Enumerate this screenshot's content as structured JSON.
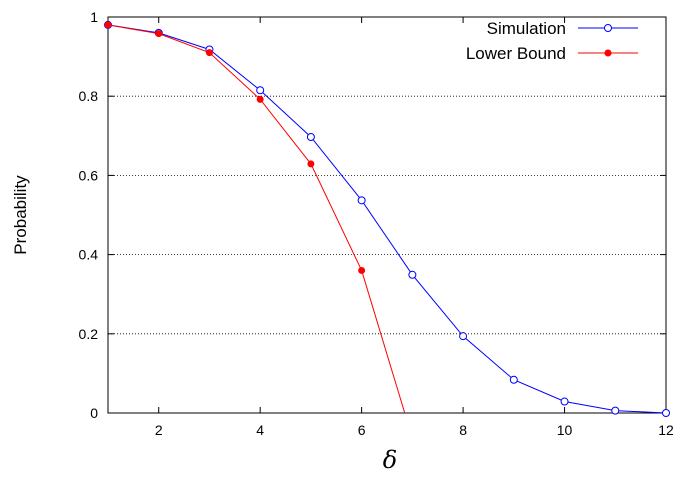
{
  "chart_data": {
    "type": "line",
    "xlabel": "δ",
    "ylabel": "Probability",
    "xlim": [
      1,
      12
    ],
    "ylim": [
      0,
      1
    ],
    "x_ticks": [
      2,
      4,
      6,
      8,
      10,
      12
    ],
    "y_ticks": [
      0,
      0.2,
      0.4,
      0.6,
      0.8,
      1
    ],
    "x_tick_labels": [
      "2",
      "4",
      "6",
      "8",
      "10",
      "12"
    ],
    "y_tick_labels": [
      "0",
      "0.2",
      "0.4",
      "0.6",
      "0.8",
      "1"
    ],
    "grid": "horizontal dotted",
    "legend_position": "top-right",
    "series": [
      {
        "name": "Simulation",
        "color": "#0000ff",
        "marker": "open-circle",
        "x": [
          1,
          2,
          3,
          4,
          5,
          6,
          7,
          8,
          9,
          10,
          11,
          12
        ],
        "y": [
          0.98,
          0.96,
          0.918,
          0.815,
          0.697,
          0.537,
          0.349,
          0.194,
          0.084,
          0.029,
          0.006,
          0.0
        ]
      },
      {
        "name": "Lower Bound",
        "color": "#ff0000",
        "marker": "filled-circle",
        "x": [
          1,
          2,
          3,
          4,
          5,
          6,
          6.85
        ],
        "y": [
          0.98,
          0.958,
          0.91,
          0.792,
          0.629,
          0.36,
          0.0
        ],
        "marked_points": 6
      }
    ]
  }
}
